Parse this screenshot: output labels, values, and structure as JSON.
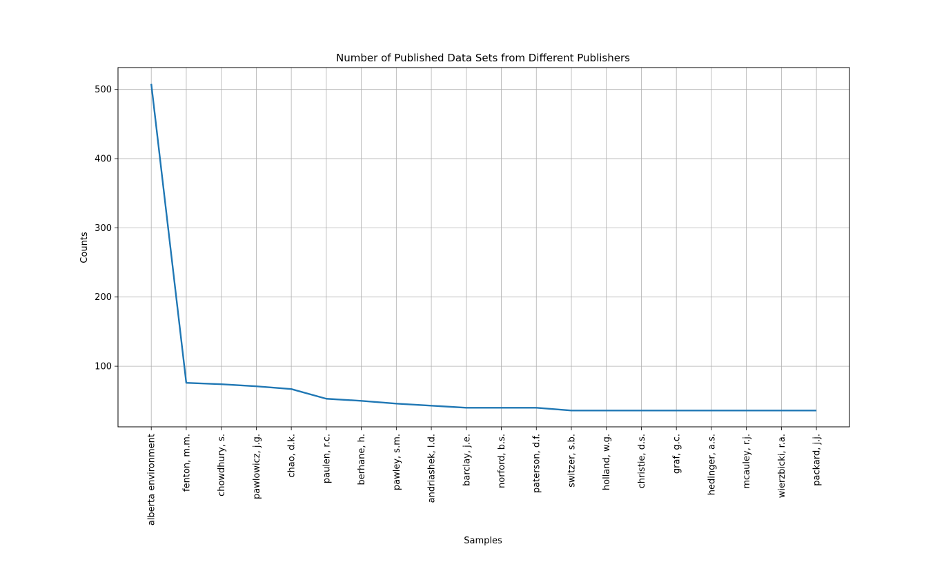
{
  "chart_data": {
    "type": "line",
    "title": "Number of Published Data Sets from Different Publishers",
    "xlabel": "Samples",
    "ylabel": "Counts",
    "categories": [
      "alberta environment",
      "fenton, m.m.",
      "chowdhury, s.",
      "pawlowicz, j.g.",
      "chao, d.k.",
      "paulen, r.c.",
      "berhane, h.",
      "pawley, s.m.",
      "andriashek, l.d.",
      "barclay, j.e.",
      "norford, b.s.",
      "paterson, d.f.",
      "switzer, s.b.",
      "holland, w.g.",
      "christie, d.s.",
      "graf, g.c.",
      "hedinger, a.s.",
      "mcauley, r.j.",
      "wierzbicki, r.a.",
      "packard, j.j."
    ],
    "values": [
      508,
      76,
      74,
      71,
      67,
      53,
      50,
      46,
      43,
      40,
      40,
      40,
      36,
      36,
      36,
      36,
      36,
      36,
      36,
      36
    ],
    "yticks": [
      100,
      200,
      300,
      400,
      500
    ],
    "ylim": [
      12.4,
      531.6
    ],
    "grid": true,
    "line_color": "#1f77b4"
  }
}
